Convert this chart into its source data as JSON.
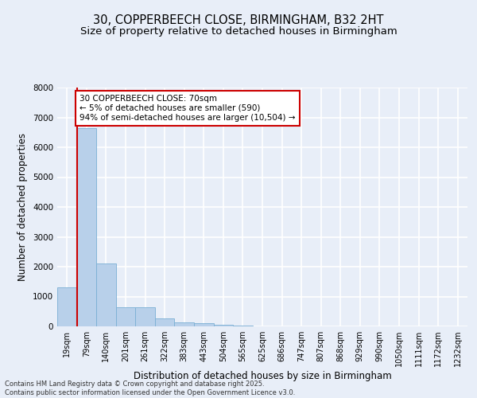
{
  "title_line1": "30, COPPERBEECH CLOSE, BIRMINGHAM, B32 2HT",
  "title_line2": "Size of property relative to detached houses in Birmingham",
  "xlabel": "Distribution of detached houses by size in Birmingham",
  "ylabel": "Number of detached properties",
  "categories": [
    "19sqm",
    "79sqm",
    "140sqm",
    "201sqm",
    "261sqm",
    "322sqm",
    "383sqm",
    "443sqm",
    "504sqm",
    "565sqm",
    "625sqm",
    "686sqm",
    "747sqm",
    "807sqm",
    "868sqm",
    "929sqm",
    "990sqm",
    "1050sqm",
    "1111sqm",
    "1172sqm",
    "1232sqm"
  ],
  "values": [
    1310,
    6650,
    2100,
    650,
    650,
    280,
    130,
    100,
    55,
    15,
    8,
    4,
    3,
    2,
    1,
    1,
    1,
    0,
    0,
    0,
    0
  ],
  "bar_color": "#b8d0ea",
  "bar_edge_color": "#7aafd4",
  "annotation_line_color": "#cc0000",
  "annotation_text": "30 COPPERBEECH CLOSE: 70sqm\n← 5% of detached houses are smaller (590)\n94% of semi-detached houses are larger (10,504) →",
  "annotation_box_color": "#ffffff",
  "annotation_box_edge": "#cc0000",
  "ylim": [
    0,
    8000
  ],
  "yticks": [
    0,
    1000,
    2000,
    3000,
    4000,
    5000,
    6000,
    7000,
    8000
  ],
  "background_color": "#e8eef8",
  "grid_color": "#ffffff",
  "footer_line1": "Contains HM Land Registry data © Crown copyright and database right 2025.",
  "footer_line2": "Contains public sector information licensed under the Open Government Licence v3.0.",
  "title_fontsize": 10.5,
  "subtitle_fontsize": 9.5,
  "axis_label_fontsize": 8.5,
  "tick_fontsize": 7,
  "annotation_fontsize": 7.5,
  "footer_fontsize": 6
}
